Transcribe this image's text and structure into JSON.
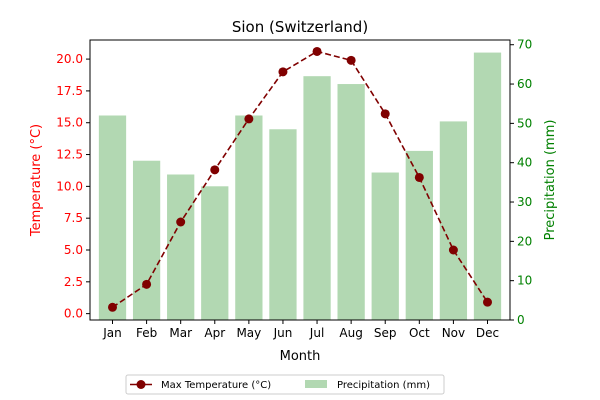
{
  "chart_data": {
    "type": "bar+line",
    "title": "Sion (Switzerland)",
    "xlabel": "Month",
    "ylabel_left": "Temperature (°C)",
    "ylabel_right": "Precipitation (mm)",
    "categories": [
      "Jan",
      "Feb",
      "Mar",
      "Apr",
      "May",
      "Jun",
      "Jul",
      "Aug",
      "Sep",
      "Oct",
      "Nov",
      "Dec"
    ],
    "y_left": {
      "range": [
        -0.5,
        21.5
      ],
      "ticks": [
        "0.0",
        "2.5",
        "5.0",
        "7.5",
        "10.0",
        "12.5",
        "15.0",
        "17.5",
        "20.0"
      ]
    },
    "y_right": {
      "range": [
        0,
        71.2
      ],
      "ticks": [
        "0",
        "10",
        "20",
        "30",
        "40",
        "50",
        "60",
        "70"
      ]
    },
    "series": [
      {
        "name": "Max Temperature (°C)",
        "type": "line",
        "axis": "left",
        "values": [
          0.5,
          2.3,
          7.2,
          11.3,
          15.3,
          19.0,
          20.6,
          19.9,
          15.7,
          10.7,
          5.0,
          0.9
        ]
      },
      {
        "name": "Precipitation (mm)",
        "type": "bar",
        "axis": "right",
        "values": [
          52,
          40.5,
          37,
          34,
          52,
          48.5,
          62,
          60,
          37.5,
          43,
          50.5,
          68
        ]
      }
    ],
    "grid": false,
    "legend_position": "bottom-center",
    "colors": {
      "line": "#800000",
      "bar": "#b2d8b2",
      "left_axis": "#ff0000",
      "right_axis": "#008000"
    }
  }
}
